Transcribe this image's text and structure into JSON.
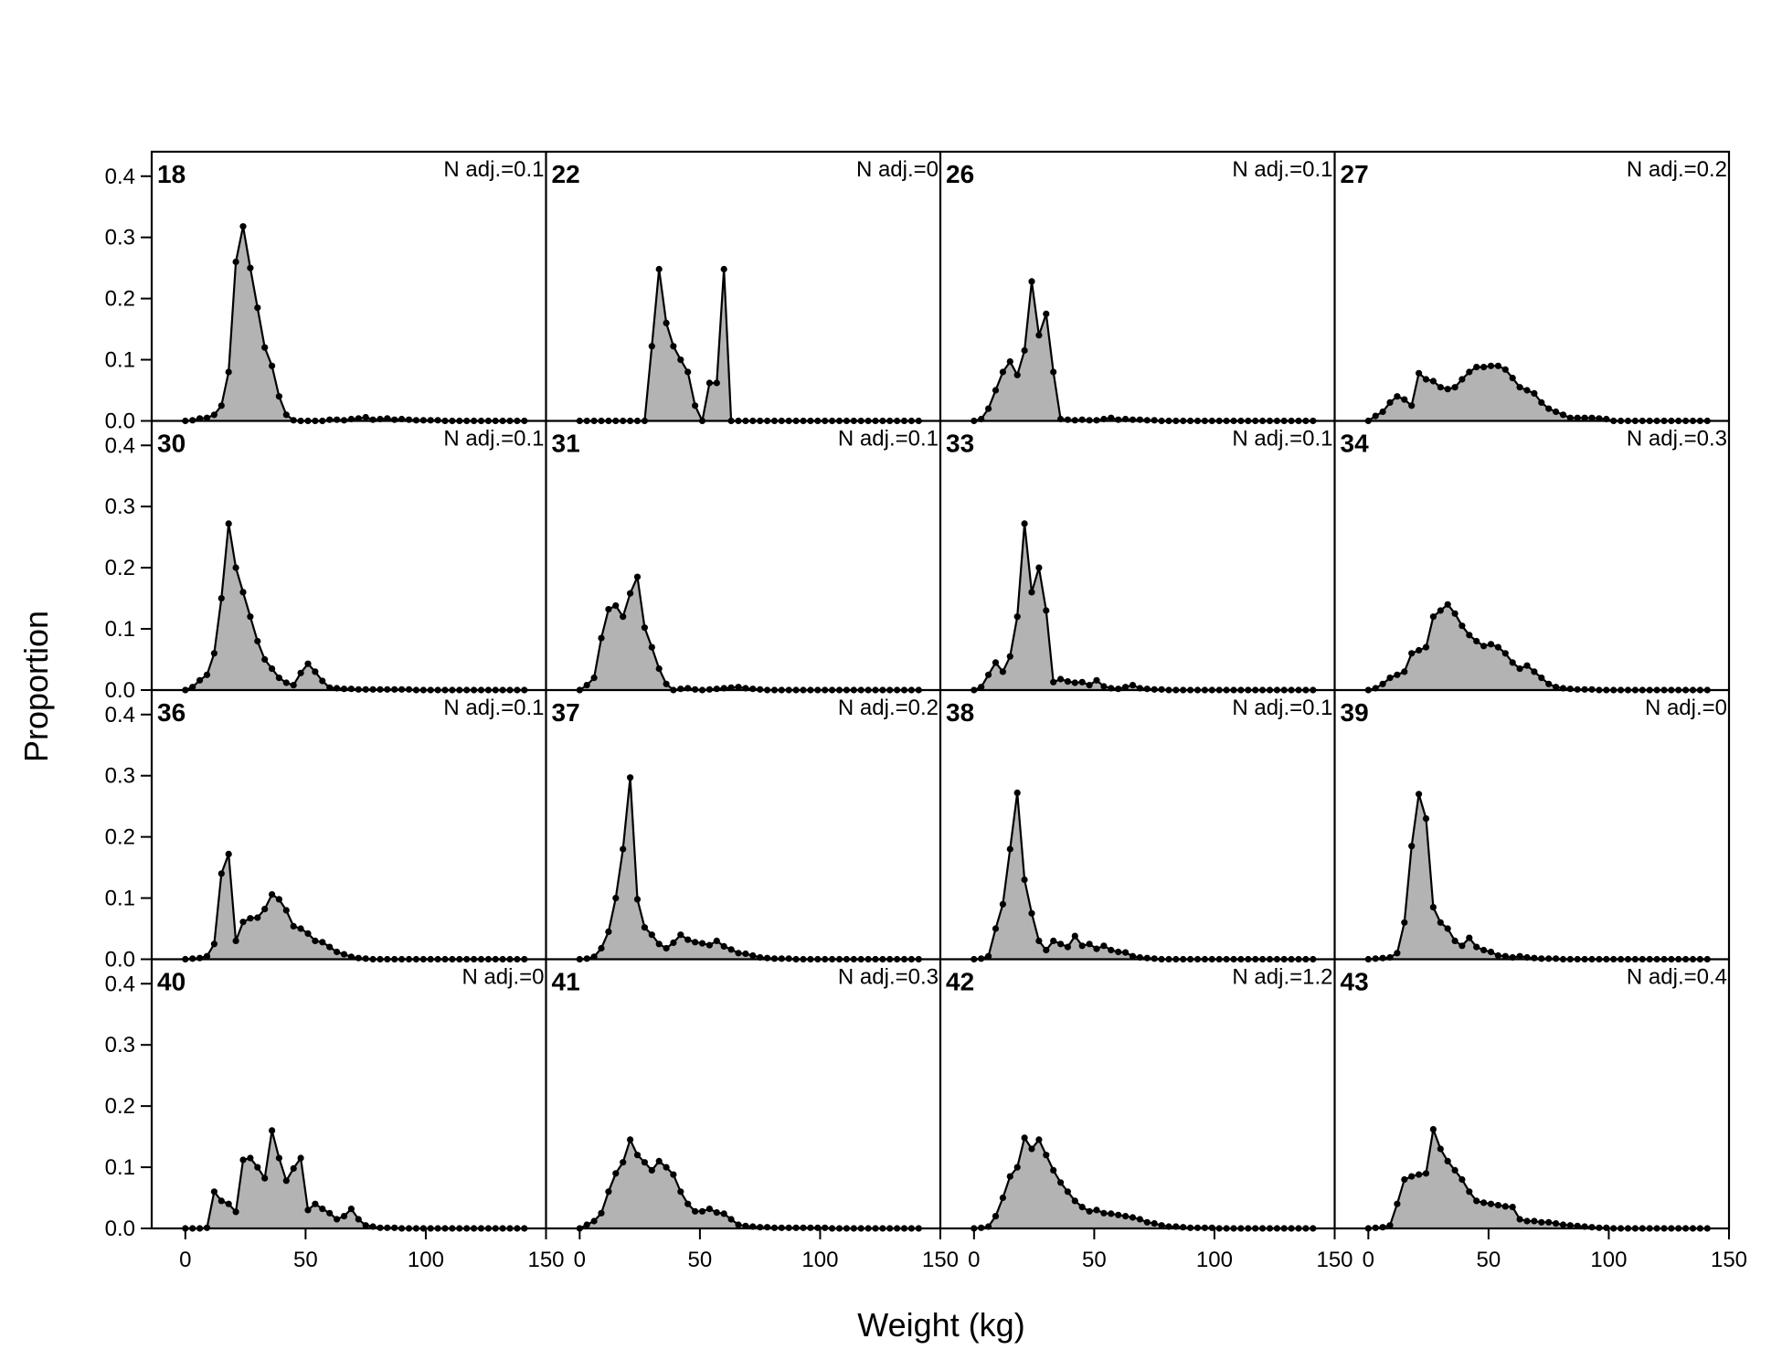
{
  "chart_data": {
    "type": "area",
    "xlabel": "Weight (kg)",
    "ylabel": "Proportion",
    "xlim": [
      -14,
      150
    ],
    "ylim": [
      0,
      0.44
    ],
    "xticks": [
      0,
      50,
      100,
      150
    ],
    "xtick_labels": [
      "0",
      "50",
      "100",
      "150"
    ],
    "yticks": [
      0,
      0.1,
      0.2,
      0.3,
      0.4
    ],
    "ytick_labels": [
      "0.0",
      "0.1",
      "0.2",
      "0.3",
      "0.4"
    ],
    "fill_color": "#b3b3b3",
    "line_color": "#000000",
    "x": [
      0,
      3,
      6,
      9,
      12,
      15,
      18,
      21,
      24,
      27,
      30,
      33,
      36,
      39,
      42,
      45,
      48,
      51,
      54,
      57,
      60,
      63,
      66,
      69,
      72,
      75,
      78,
      81,
      84,
      87,
      90,
      93,
      96,
      99,
      102,
      105,
      108,
      111,
      114,
      117,
      120,
      123,
      126,
      129,
      132,
      135,
      138,
      141
    ],
    "panels": [
      {
        "id": "18",
        "nadj": "N adj.=0.1",
        "y": [
          0,
          0.001,
          0.004,
          0.005,
          0.01,
          0.025,
          0.08,
          0.26,
          0.318,
          0.25,
          0.185,
          0.12,
          0.09,
          0.04,
          0.01,
          0.001,
          0,
          0,
          0,
          0,
          0.002,
          0.002,
          0.001,
          0.003,
          0.004,
          0.006,
          0.002,
          0.003,
          0.004,
          0.002,
          0.003,
          0.002,
          0.001,
          0.001,
          0.001,
          0.001,
          0,
          0,
          0,
          0,
          0,
          0,
          0,
          0,
          0,
          0,
          0,
          0
        ]
      },
      {
        "id": "30",
        "nadj": "N adj.=0.1",
        "y": [
          0,
          0.005,
          0.016,
          0.025,
          0.06,
          0.15,
          0.272,
          0.2,
          0.16,
          0.12,
          0.08,
          0.05,
          0.035,
          0.02,
          0.012,
          0.008,
          0.028,
          0.043,
          0.03,
          0.015,
          0.004,
          0.003,
          0.002,
          0.002,
          0.001,
          0.001,
          0.001,
          0.001,
          0.001,
          0.001,
          0.001,
          0.001,
          0,
          0,
          0,
          0,
          0,
          0,
          0,
          0,
          0,
          0,
          0,
          0,
          0,
          0,
          0,
          0
        ]
      },
      {
        "id": "36",
        "nadj": "N adj.=0.1",
        "y": [
          0,
          0.001,
          0.002,
          0.005,
          0.025,
          0.14,
          0.172,
          0.03,
          0.061,
          0.067,
          0.068,
          0.082,
          0.106,
          0.098,
          0.08,
          0.054,
          0.05,
          0.042,
          0.03,
          0.028,
          0.02,
          0.012,
          0.008,
          0.004,
          0.002,
          0.001,
          0,
          0,
          0,
          0,
          0,
          0,
          0,
          0,
          0,
          0,
          0,
          0,
          0,
          0,
          0,
          0,
          0,
          0,
          0,
          0,
          0,
          0
        ]
      },
      {
        "id": "40",
        "nadj": "N adj.=0",
        "y": [
          0,
          0,
          0,
          0.001,
          0.06,
          0.045,
          0.04,
          0.027,
          0.112,
          0.115,
          0.1,
          0.082,
          0.16,
          0.115,
          0.078,
          0.098,
          0.115,
          0.03,
          0.04,
          0.032,
          0.025,
          0.015,
          0.02,
          0.032,
          0.015,
          0.005,
          0.003,
          0.001,
          0.001,
          0.001,
          0,
          0,
          0,
          0,
          0,
          0,
          0,
          0,
          0,
          0,
          0,
          0,
          0,
          0,
          0,
          0,
          0,
          0
        ]
      },
      {
        "id": "22",
        "nadj": "N adj.=0",
        "y": [
          0,
          0,
          0,
          0,
          0,
          0,
          0,
          0,
          0,
          0,
          0.122,
          0.248,
          0.16,
          0.122,
          0.1,
          0.08,
          0.025,
          0,
          0.062,
          0.062,
          0.248,
          0,
          0,
          0,
          0,
          0,
          0,
          0,
          0,
          0,
          0,
          0,
          0,
          0,
          0,
          0,
          0,
          0,
          0,
          0,
          0,
          0,
          0,
          0,
          0,
          0,
          0,
          0
        ]
      },
      {
        "id": "31",
        "nadj": "N adj.=0.1",
        "y": [
          0,
          0.008,
          0.02,
          0.085,
          0.132,
          0.138,
          0.12,
          0.158,
          0.185,
          0.102,
          0.07,
          0.035,
          0.01,
          0,
          0.002,
          0.003,
          0.001,
          0,
          0.001,
          0.002,
          0.003,
          0.004,
          0.005,
          0.003,
          0.002,
          0.001,
          0,
          0,
          0,
          0,
          0,
          0,
          0,
          0,
          0,
          0,
          0,
          0,
          0,
          0,
          0,
          0,
          0,
          0,
          0,
          0,
          0,
          0
        ]
      },
      {
        "id": "37",
        "nadj": "N adj.=0.2",
        "y": [
          0,
          0.001,
          0.004,
          0.018,
          0.045,
          0.1,
          0.18,
          0.297,
          0.098,
          0.052,
          0.04,
          0.025,
          0.018,
          0.027,
          0.04,
          0.032,
          0.028,
          0.026,
          0.023,
          0.03,
          0.021,
          0.016,
          0.01,
          0.009,
          0.006,
          0.003,
          0.002,
          0.001,
          0.001,
          0.001,
          0,
          0,
          0,
          0,
          0,
          0,
          0,
          0,
          0,
          0,
          0,
          0,
          0,
          0,
          0,
          0,
          0,
          0
        ]
      },
      {
        "id": "41",
        "nadj": "N adj.=0.3",
        "y": [
          0,
          0.006,
          0.012,
          0.025,
          0.06,
          0.09,
          0.108,
          0.145,
          0.12,
          0.108,
          0.095,
          0.11,
          0.1,
          0.088,
          0.06,
          0.04,
          0.028,
          0.028,
          0.032,
          0.026,
          0.024,
          0.015,
          0.006,
          0.004,
          0.003,
          0.002,
          0.002,
          0.001,
          0.001,
          0.001,
          0.001,
          0.001,
          0.001,
          0.001,
          0.001,
          0,
          0,
          0,
          0,
          0,
          0,
          0,
          0,
          0,
          0,
          0,
          0,
          0
        ]
      },
      {
        "id": "26",
        "nadj": "N adj.=0.1",
        "y": [
          0,
          0.003,
          0.02,
          0.05,
          0.08,
          0.097,
          0.075,
          0.115,
          0.228,
          0.14,
          0.175,
          0.08,
          0.003,
          0.002,
          0.001,
          0.002,
          0.001,
          0.001,
          0.003,
          0.005,
          0.002,
          0.003,
          0.002,
          0.002,
          0.001,
          0.001,
          0,
          0,
          0,
          0,
          0,
          0,
          0,
          0,
          0,
          0,
          0,
          0,
          0,
          0,
          0,
          0,
          0,
          0,
          0,
          0,
          0,
          0
        ]
      },
      {
        "id": "33",
        "nadj": "N adj.=0.1",
        "y": [
          0,
          0.005,
          0.025,
          0.045,
          0.03,
          0.055,
          0.12,
          0.272,
          0.16,
          0.2,
          0.13,
          0.013,
          0.018,
          0.014,
          0.012,
          0.013,
          0.008,
          0.016,
          0.006,
          0.003,
          0.002,
          0.005,
          0.008,
          0.003,
          0.002,
          0.001,
          0.001,
          0,
          0,
          0,
          0,
          0,
          0,
          0,
          0,
          0,
          0,
          0,
          0,
          0,
          0,
          0,
          0,
          0,
          0,
          0,
          0,
          0
        ]
      },
      {
        "id": "38",
        "nadj": "N adj.=0.1",
        "y": [
          0,
          0.001,
          0.005,
          0.05,
          0.09,
          0.18,
          0.272,
          0.13,
          0.075,
          0.03,
          0.015,
          0.03,
          0.025,
          0.02,
          0.038,
          0.022,
          0.025,
          0.017,
          0.022,
          0.015,
          0.012,
          0.011,
          0.005,
          0.003,
          0.002,
          0.001,
          0,
          0,
          0,
          0,
          0,
          0,
          0,
          0,
          0,
          0,
          0,
          0,
          0,
          0,
          0,
          0,
          0,
          0,
          0,
          0,
          0,
          0
        ]
      },
      {
        "id": "42",
        "nadj": "N adj.=1.2",
        "y": [
          0,
          0.001,
          0.003,
          0.02,
          0.05,
          0.085,
          0.1,
          0.148,
          0.13,
          0.145,
          0.12,
          0.095,
          0.075,
          0.06,
          0.045,
          0.035,
          0.028,
          0.03,
          0.025,
          0.024,
          0.022,
          0.02,
          0.018,
          0.015,
          0.01,
          0.008,
          0.005,
          0.003,
          0.003,
          0.002,
          0.001,
          0.001,
          0.001,
          0.001,
          0,
          0,
          0,
          0,
          0,
          0,
          0,
          0,
          0,
          0,
          0,
          0,
          0,
          0
        ]
      },
      {
        "id": "27",
        "nadj": "N adj.=0.2",
        "y": [
          0,
          0.008,
          0.015,
          0.03,
          0.04,
          0.035,
          0.025,
          0.078,
          0.068,
          0.065,
          0.055,
          0.052,
          0.055,
          0.068,
          0.08,
          0.088,
          0.088,
          0.09,
          0.09,
          0.084,
          0.07,
          0.055,
          0.05,
          0.045,
          0.03,
          0.02,
          0.015,
          0.01,
          0.005,
          0.005,
          0.005,
          0.005,
          0.004,
          0.003,
          0,
          0,
          0,
          0,
          0,
          0,
          0,
          0,
          0,
          0,
          0,
          0,
          0,
          0
        ]
      },
      {
        "id": "34",
        "nadj": "N adj.=0.3",
        "y": [
          0,
          0.003,
          0.01,
          0.02,
          0.025,
          0.03,
          0.06,
          0.065,
          0.07,
          0.12,
          0.13,
          0.14,
          0.125,
          0.105,
          0.09,
          0.08,
          0.072,
          0.075,
          0.07,
          0.06,
          0.045,
          0.035,
          0.04,
          0.03,
          0.02,
          0.01,
          0.005,
          0.003,
          0.002,
          0.001,
          0.001,
          0.001,
          0,
          0,
          0,
          0,
          0,
          0,
          0,
          0,
          0,
          0,
          0,
          0,
          0,
          0,
          0,
          0
        ]
      },
      {
        "id": "39",
        "nadj": "N adj.=0",
        "y": [
          0,
          0.001,
          0.002,
          0.003,
          0.01,
          0.06,
          0.185,
          0.27,
          0.23,
          0.085,
          0.06,
          0.05,
          0.03,
          0.022,
          0.035,
          0.02,
          0.015,
          0.012,
          0.006,
          0.005,
          0.003,
          0.005,
          0.003,
          0.002,
          0.001,
          0.001,
          0.001,
          0,
          0,
          0,
          0,
          0,
          0,
          0,
          0,
          0,
          0,
          0,
          0,
          0,
          0,
          0,
          0,
          0,
          0,
          0,
          0,
          0
        ]
      },
      {
        "id": "43",
        "nadj": "N adj.=0.4",
        "y": [
          0,
          0.001,
          0.002,
          0.005,
          0.04,
          0.08,
          0.085,
          0.088,
          0.09,
          0.162,
          0.13,
          0.11,
          0.095,
          0.08,
          0.06,
          0.045,
          0.042,
          0.04,
          0.038,
          0.036,
          0.035,
          0.015,
          0.012,
          0.012,
          0.01,
          0.01,
          0.008,
          0.006,
          0.005,
          0.004,
          0.003,
          0.002,
          0.001,
          0.001,
          0,
          0,
          0,
          0,
          0,
          0,
          0,
          0,
          0,
          0,
          0,
          0,
          0,
          0
        ]
      }
    ]
  }
}
